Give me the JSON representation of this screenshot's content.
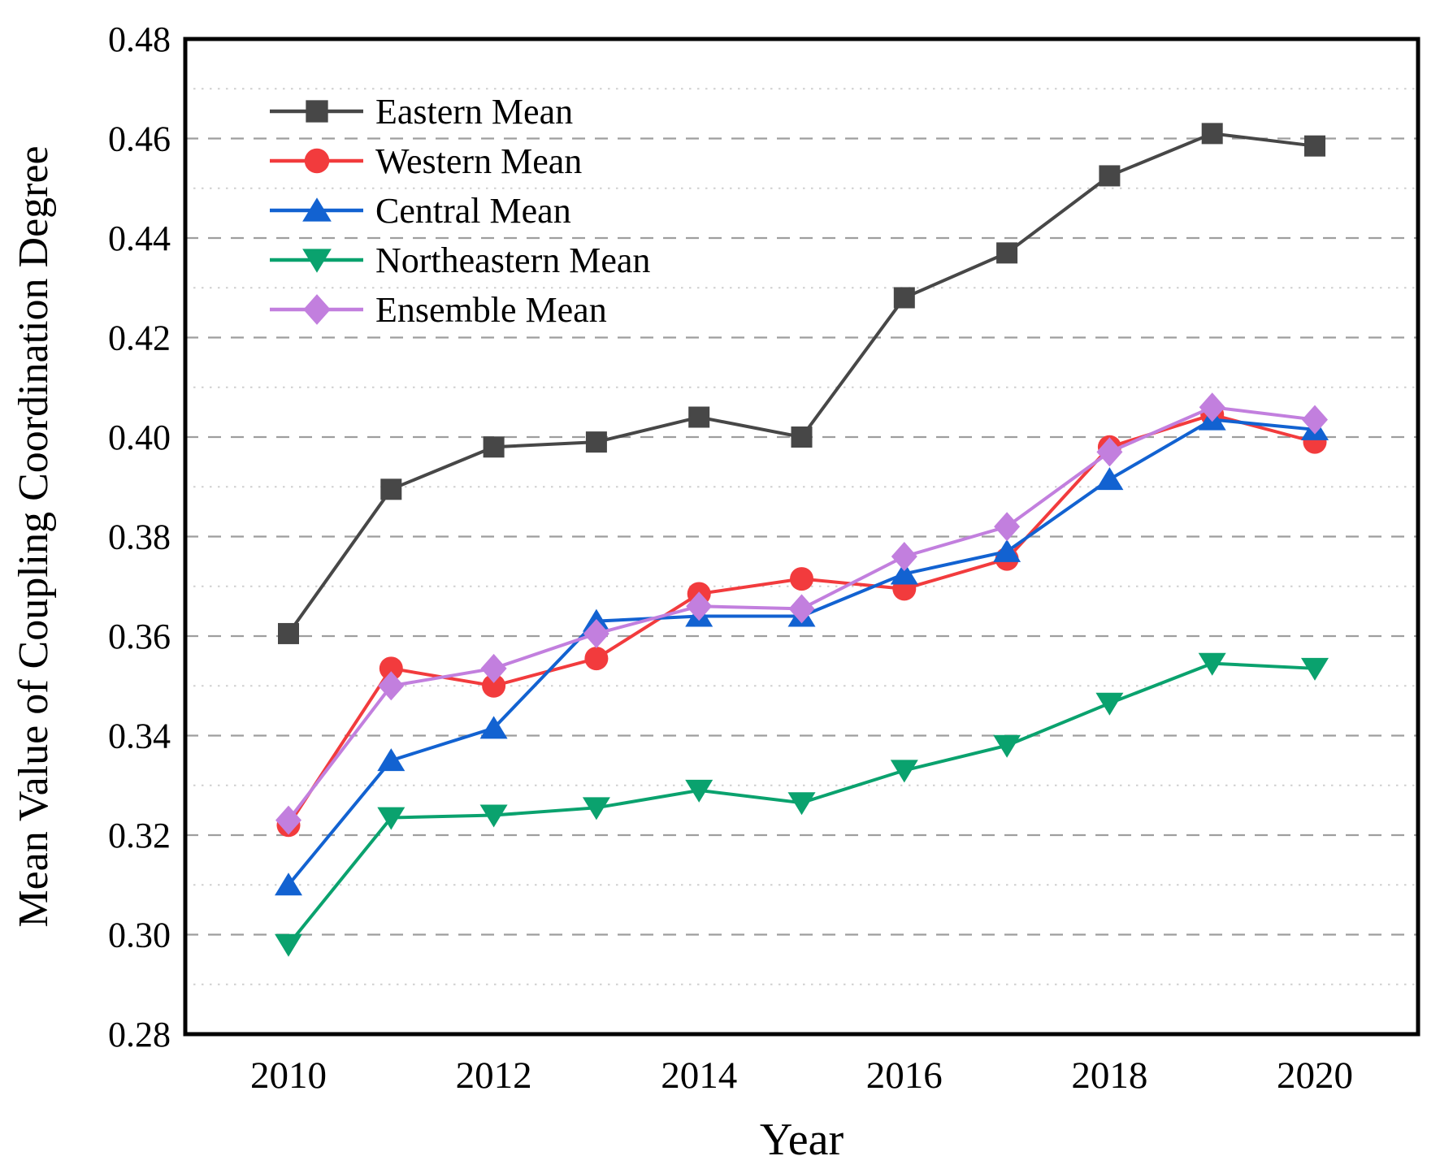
{
  "figure": {
    "kind": "line-chart-figure",
    "background": "#ffffff"
  },
  "chart_data": {
    "type": "line",
    "title": "",
    "xlabel": "Year",
    "ylabel": "Mean Value of Coupling Coordination Degree",
    "x": [
      2010,
      2011,
      2012,
      2013,
      2014,
      2015,
      2016,
      2017,
      2018,
      2019,
      2020
    ],
    "xtick_labels": [
      2010,
      2012,
      2014,
      2016,
      2018,
      2020
    ],
    "ylim": [
      0.28,
      0.48
    ],
    "ytick_step": 0.02,
    "ytick_labels": [
      "0.28",
      "0.30",
      "0.32",
      "0.34",
      "0.36",
      "0.38",
      "0.40",
      "0.42",
      "0.44",
      "0.46",
      "0.48"
    ],
    "grid": {
      "major": "dashed",
      "minor": "dotted",
      "major_color": "#9e9e9e",
      "minor_color": "#cfcfcf"
    },
    "frame_color": "#000000",
    "legend_position": "upper-left",
    "series": [
      {
        "name": "Eastern Mean",
        "color": "#474747",
        "marker": "square",
        "values": [
          0.3605,
          0.3895,
          0.398,
          0.399,
          0.404,
          0.4,
          0.428,
          0.437,
          0.4525,
          0.461,
          0.4585
        ]
      },
      {
        "name": "Western Mean",
        "color": "#F23B3D",
        "marker": "circle",
        "values": [
          0.322,
          0.3535,
          0.35,
          0.3555,
          0.3685,
          0.3715,
          0.3695,
          0.3755,
          0.398,
          0.4045,
          0.399
        ]
      },
      {
        "name": "Central Mean",
        "color": "#1262D1",
        "marker": "triangle-up",
        "values": [
          0.31,
          0.335,
          0.3415,
          0.363,
          0.364,
          0.364,
          0.3725,
          0.377,
          0.3915,
          0.4035,
          0.4015
        ]
      },
      {
        "name": "Northeastern Mean",
        "color": "#0AA26E",
        "marker": "triangle-down",
        "values": [
          0.298,
          0.3235,
          0.324,
          0.3255,
          0.329,
          0.3265,
          0.333,
          0.338,
          0.3465,
          0.3545,
          0.3535
        ]
      },
      {
        "name": "Ensemble Mean",
        "color": "#C27FDE",
        "marker": "diamond",
        "values": [
          0.323,
          0.35,
          0.3535,
          0.3605,
          0.366,
          0.3655,
          0.376,
          0.382,
          0.397,
          0.406,
          0.4035
        ]
      }
    ]
  }
}
